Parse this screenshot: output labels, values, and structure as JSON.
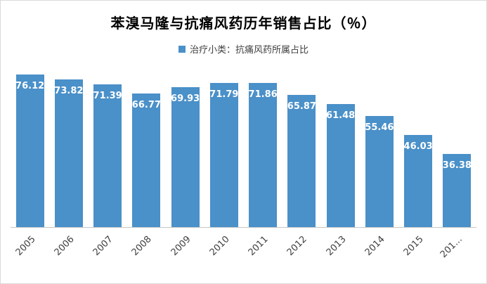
{
  "chart": {
    "title": "苯溴马隆与抗痛风药历年销售占比（％）",
    "legend_label": "治疗小类：抗痛风药所属占比",
    "bar_color": "#4A90C9",
    "label_color": "#FFFFFF",
    "axis_color": "#C6C6C6",
    "tick_color": "#404040"
  },
  "chart_data": {
    "type": "bar",
    "title": "苯溴马隆与抗痛风药历年销售占比（％）",
    "series_name": "治疗小类：抗痛风药所属占比",
    "categories": [
      "2005",
      "2006",
      "2007",
      "2008",
      "2009",
      "2010",
      "2011",
      "2012",
      "2013",
      "2014",
      "2015",
      "201..."
    ],
    "values": [
      76.12,
      73.82,
      71.39,
      66.77,
      69.93,
      71.79,
      71.86,
      65.87,
      61.48,
      55.46,
      46.03,
      36.38
    ],
    "ylim": [
      0,
      80
    ],
    "grid": false,
    "y_axis_visible": false,
    "legend_position": "top",
    "data_labels": true,
    "data_label_position": "inside-top",
    "x_tick_rotation": -45
  }
}
